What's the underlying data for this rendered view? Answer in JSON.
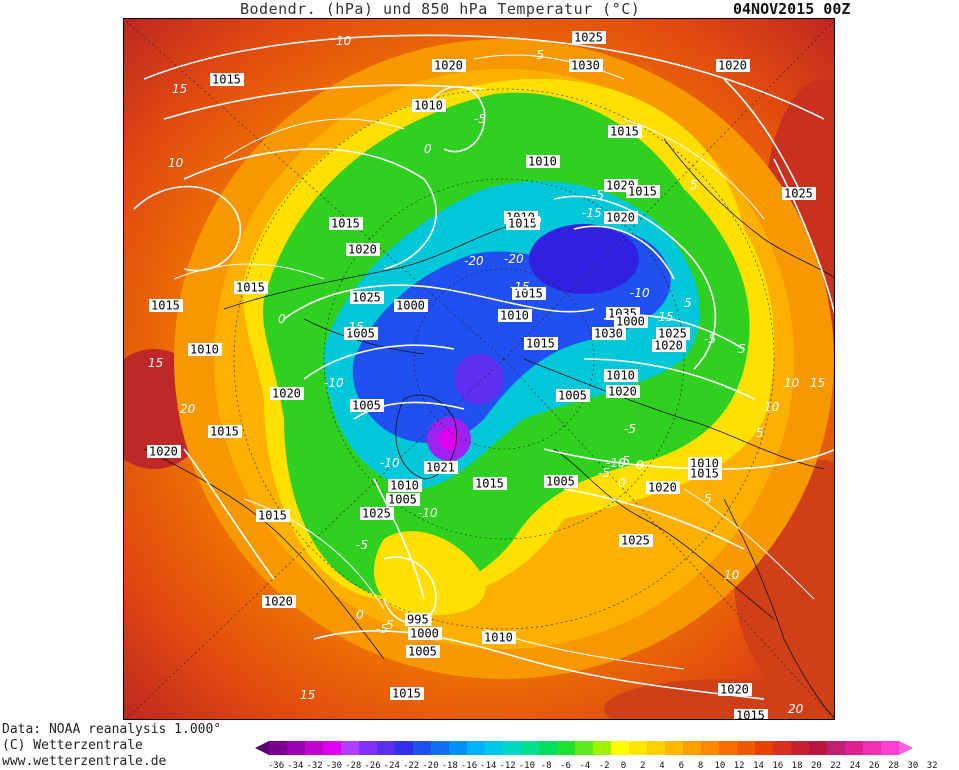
{
  "title": {
    "text": "Bodendr. (hPa) und 850 hPa Temperatur (°C)",
    "date": "04NOV2015 00Z"
  },
  "footer": {
    "line1": "Data: NOAA reanalysis 1.000°",
    "line2": "(C) Wetterzentrale",
    "line3": "www.wetterzentrale.de"
  },
  "colorbar": {
    "colors": [
      "#5a0070",
      "#7a0090",
      "#9a00b0",
      "#c000d0",
      "#e000f0",
      "#b040ff",
      "#8030ff",
      "#5a30f0",
      "#3030e8",
      "#2050f0",
      "#1070f0",
      "#0090f8",
      "#00b0f8",
      "#00c8e8",
      "#00d8c0",
      "#00e090",
      "#00e060",
      "#20e030",
      "#60e820",
      "#a0f000",
      "#ffff00",
      "#ffe800",
      "#ffd000",
      "#ffb800",
      "#ffa000",
      "#ff8800",
      "#f87000",
      "#f05800",
      "#e84000",
      "#d83020",
      "#c82030",
      "#b81840",
      "#c02070",
      "#e02090",
      "#f030b0",
      "#ff40d0",
      "#ff60e0"
    ],
    "ticks": [
      "-36",
      "-34",
      "-32",
      "-30",
      "-28",
      "-26",
      "-24",
      "-22",
      "-20",
      "-18",
      "-16",
      "-14",
      "-12",
      "-10",
      "-8",
      "-6",
      "-4",
      "-2",
      "0",
      "2",
      "4",
      "6",
      "8",
      "10",
      "12",
      "14",
      "16",
      "18",
      "20",
      "22",
      "24",
      "26",
      "28",
      "30",
      "32"
    ]
  },
  "pressure_labels": [
    "1025",
    "1030",
    "1020",
    "1015",
    "1010",
    "1020",
    "1015",
    "1010",
    "1020",
    "1015",
    "1025",
    "1015",
    "1010",
    "1015",
    "1020",
    "1020",
    "1015",
    "1025",
    "1010",
    "1000",
    "1015",
    "1035",
    "1030",
    "1025",
    "1020",
    "1015",
    "1005",
    "1010",
    "1015",
    "1000",
    "1010",
    "1005",
    "1020",
    "1020",
    "1005",
    "1015",
    "1020",
    "1021",
    "1015",
    "1010",
    "1005",
    "1005",
    "1010",
    "1015",
    "1020",
    "1025",
    "1015",
    "1025",
    "1020",
    "995",
    "1000",
    "1005",
    "1010",
    "1015",
    "1020",
    "1015"
  ],
  "temp_labels": [
    "10",
    "15",
    "-5",
    "-10",
    "-15",
    "-20",
    "-5",
    "-10",
    "-15",
    "-5",
    "0",
    "5",
    "-5",
    "-10",
    "-15",
    "-20",
    "-10",
    "-5",
    "0",
    "5",
    "10",
    "15",
    "20",
    "-15",
    "-10",
    "-5",
    "5",
    "10",
    "15",
    "-5",
    "0",
    "5",
    "5",
    "10",
    "-5",
    "0",
    "-10",
    "-5",
    "0",
    "5",
    "10",
    "15",
    "20"
  ]
}
